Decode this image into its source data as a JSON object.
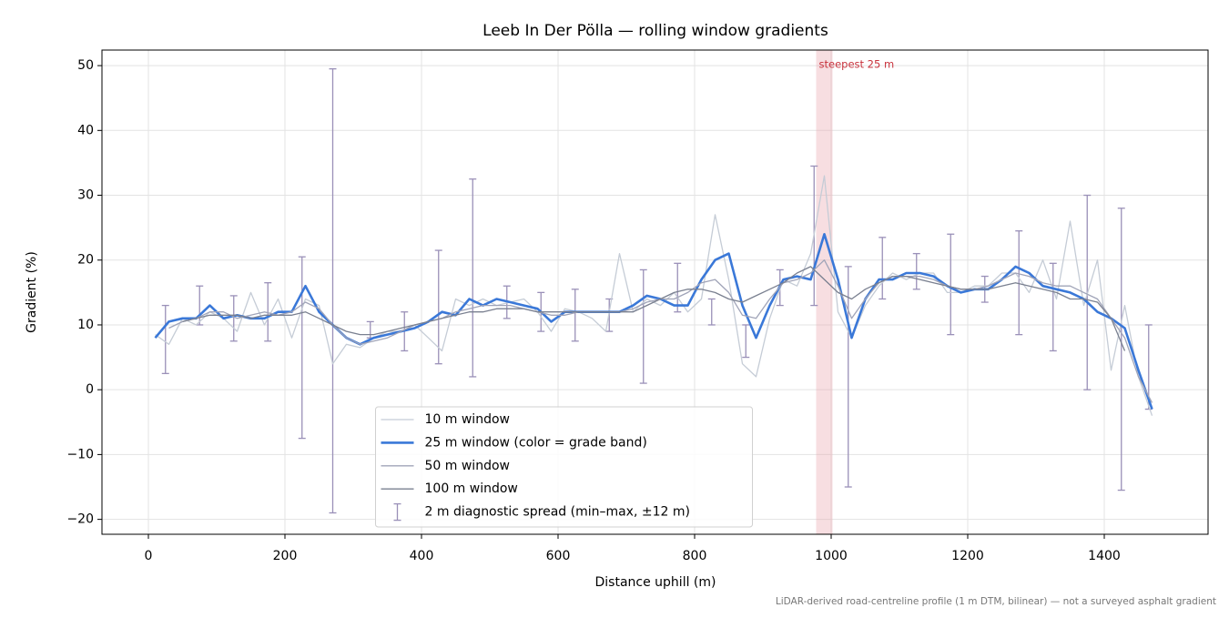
{
  "chart_data": {
    "type": "line",
    "title": "Leeb In Der Pölla — rolling window gradients",
    "x_label": "Distance uphill (m)",
    "y_label": "Gradient (%)",
    "note": "LiDAR-derived road-centreline profile (1 m DTM, bilinear) — not a surveyed asphalt gradient",
    "xlim": [
      -68,
      1552
    ],
    "ylim": [
      -22.3,
      52.4
    ],
    "xticks": [
      0,
      200,
      400,
      600,
      800,
      1000,
      1200,
      1400
    ],
    "yticks": [
      {
        "value": -20,
        "label": "−20"
      },
      {
        "value": -10,
        "label": "−10"
      },
      0,
      10,
      20,
      30,
      40,
      50
    ],
    "grid": true,
    "legend": "lower center",
    "x": [
      10,
      30,
      50,
      70,
      90,
      110,
      130,
      150,
      170,
      190,
      210,
      230,
      250,
      270,
      290,
      310,
      330,
      350,
      370,
      390,
      410,
      430,
      450,
      470,
      490,
      510,
      530,
      550,
      570,
      590,
      610,
      630,
      650,
      670,
      690,
      710,
      730,
      750,
      770,
      790,
      810,
      830,
      850,
      870,
      890,
      910,
      930,
      950,
      970,
      990,
      1010,
      1030,
      1050,
      1070,
      1090,
      1110,
      1130,
      1150,
      1170,
      1190,
      1210,
      1230,
      1250,
      1270,
      1290,
      1310,
      1330,
      1350,
      1370,
      1390,
      1410,
      1430,
      1450,
      1470
    ],
    "series": [
      {
        "name": "10 m window",
        "color": "#c5ccd6",
        "width": 1.3,
        "values": [
          8.5,
          7,
          11,
          10,
          12,
          11,
          9,
          15,
          10,
          14,
          8,
          14,
          13,
          4,
          7,
          6.5,
          8,
          9,
          9,
          10,
          8,
          6,
          14,
          13,
          14,
          13,
          13.5,
          14,
          12,
          9,
          12.5,
          12,
          11,
          9,
          21,
          12,
          14,
          13,
          15,
          12,
          14,
          27,
          17,
          4,
          2,
          11,
          17,
          16,
          21,
          33,
          12,
          8,
          13,
          16,
          18,
          17,
          18,
          18,
          15,
          15,
          16,
          16,
          18,
          18,
          15,
          20,
          14,
          26,
          13,
          20,
          3,
          13,
          2,
          -4
        ]
      },
      {
        "name": "25 m window (color = grade band)",
        "color": "#3a78d8",
        "width": 2.6,
        "values": [
          8,
          10.5,
          11,
          11,
          13,
          11,
          11.5,
          11,
          11,
          12,
          12,
          16,
          12,
          10,
          8,
          7,
          8,
          8.5,
          9,
          9.5,
          10.5,
          12,
          11.5,
          14,
          13,
          14,
          13.5,
          13,
          12.5,
          10.5,
          12,
          12,
          12,
          12,
          12,
          13,
          14.5,
          14,
          13,
          13,
          17,
          20,
          21,
          13,
          8,
          13,
          17,
          17.5,
          17,
          24,
          17,
          8,
          14,
          17,
          17,
          18,
          18,
          17.5,
          16,
          15,
          15.5,
          15.5,
          17,
          19,
          18,
          16,
          15.5,
          15,
          14,
          12,
          11,
          9.5,
          3,
          -3
        ]
      },
      {
        "name": "50 m window",
        "color": "#a0a4b8",
        "width": 1.3,
        "values": [
          null,
          9.5,
          10.5,
          11,
          12,
          12,
          11,
          11.5,
          12,
          11.5,
          12,
          13.5,
          12.5,
          10,
          8,
          7,
          7.5,
          8,
          9,
          10,
          10.5,
          11,
          12,
          12.5,
          13,
          13,
          13,
          12.5,
          12,
          11.5,
          11.5,
          12,
          12,
          12,
          12,
          12.5,
          13.5,
          14,
          14,
          15,
          16.5,
          17,
          15,
          11.5,
          11,
          14,
          16.5,
          17,
          18,
          20,
          16,
          11,
          14,
          16.5,
          17.5,
          17.5,
          17.5,
          17,
          16,
          15.5,
          15.5,
          16,
          17,
          18,
          17.5,
          16.5,
          16,
          16,
          15,
          14,
          11,
          8,
          2,
          -2
        ]
      },
      {
        "name": "100 m window",
        "color": "#7a8090",
        "width": 1.3,
        "values": [
          null,
          null,
          10.5,
          11,
          11.5,
          11.5,
          11.5,
          11,
          11.5,
          11.5,
          11.5,
          12,
          11,
          10,
          9,
          8.5,
          8.5,
          9,
          9.5,
          10,
          10.5,
          11,
          11.5,
          12,
          12,
          12.5,
          12.5,
          12.5,
          12,
          12,
          12,
          12,
          12,
          12,
          12,
          12,
          13,
          14,
          15,
          15.5,
          15.5,
          15,
          14,
          13.5,
          14.5,
          15.5,
          16.5,
          18,
          19,
          17,
          15,
          14,
          15.5,
          16.5,
          17.5,
          17.5,
          17,
          16.5,
          16,
          15.5,
          15.5,
          15.5,
          16,
          16.5,
          16,
          15.5,
          15,
          14,
          14,
          13.5,
          11,
          6,
          null,
          null
        ]
      }
    ],
    "error_bars": {
      "name": "2 m diagnostic spread (min–max, ±12 m)",
      "color": "#9a90b8",
      "x": [
        25,
        75,
        125,
        175,
        225,
        270,
        325,
        375,
        425,
        475,
        525,
        575,
        625,
        675,
        725,
        775,
        825,
        875,
        925,
        975,
        1025,
        1075,
        1125,
        1175,
        1225,
        1275,
        1325,
        1375,
        1425,
        1465
      ],
      "low": [
        2.5,
        10,
        7.5,
        7.5,
        -7.5,
        -19,
        8,
        6,
        4,
        2,
        11,
        9,
        7.5,
        9,
        1,
        12,
        10,
        5,
        13,
        13,
        -15,
        14,
        15.5,
        8.5,
        13.5,
        8.5,
        6,
        0,
        -15.5,
        -3
      ],
      "high": [
        13,
        16,
        14.5,
        16.5,
        20.5,
        49.5,
        10.5,
        12,
        21.5,
        32.5,
        16,
        15,
        15.5,
        14,
        18.5,
        19.5,
        14,
        10,
        18.5,
        34.5,
        19,
        23.5,
        21,
        24,
        17.5,
        24.5,
        19.5,
        30,
        28,
        10
      ]
    },
    "highlight": {
      "label": "steepest 25 m",
      "x0": 978,
      "x1": 1002,
      "color": "#e8a0a8"
    }
  }
}
